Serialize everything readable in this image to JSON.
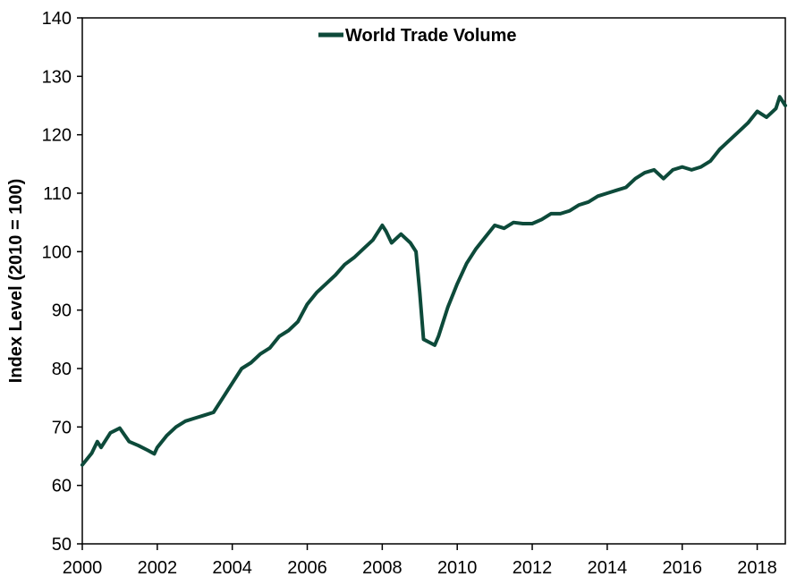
{
  "chart_data": {
    "type": "line",
    "ylabel": "Index Level (2010 = 100)",
    "ylim": [
      50,
      140
    ],
    "xlim": [
      2000,
      2018.75
    ],
    "y_ticks": [
      "50",
      "60",
      "70",
      "80",
      "90",
      "100",
      "110",
      "120",
      "130",
      "140"
    ],
    "x_ticks": [
      "2000",
      "2002",
      "2004",
      "2006",
      "2008",
      "2010",
      "2012",
      "2014",
      "2016",
      "2018"
    ],
    "grid": false,
    "legend_position": "top-center",
    "series": [
      {
        "name": "World Trade Volume",
        "color": "#0d4a3a",
        "x": [
          2000.0,
          2000.25,
          2000.4,
          2000.5,
          2000.75,
          2001.0,
          2001.25,
          2001.5,
          2001.75,
          2001.92,
          2002.0,
          2002.25,
          2002.5,
          2002.75,
          2003.0,
          2003.25,
          2003.5,
          2003.75,
          2004.0,
          2004.25,
          2004.5,
          2004.75,
          2005.0,
          2005.25,
          2005.5,
          2005.75,
          2006.0,
          2006.25,
          2006.5,
          2006.75,
          2007.0,
          2007.25,
          2007.5,
          2007.75,
          2008.0,
          2008.1,
          2008.25,
          2008.5,
          2008.75,
          2008.9,
          2009.0,
          2009.1,
          2009.25,
          2009.4,
          2009.5,
          2009.75,
          2010.0,
          2010.25,
          2010.5,
          2010.75,
          2011.0,
          2011.25,
          2011.5,
          2011.75,
          2012.0,
          2012.25,
          2012.5,
          2012.75,
          2013.0,
          2013.25,
          2013.5,
          2013.75,
          2014.0,
          2014.25,
          2014.5,
          2014.75,
          2015.0,
          2015.25,
          2015.5,
          2015.75,
          2016.0,
          2016.25,
          2016.5,
          2016.75,
          2017.0,
          2017.25,
          2017.5,
          2017.75,
          2018.0,
          2018.25,
          2018.5,
          2018.6,
          2018.75
        ],
        "values": [
          63.5,
          65.5,
          67.5,
          66.5,
          69.0,
          69.8,
          67.5,
          66.8,
          66.0,
          65.4,
          66.5,
          68.5,
          70.0,
          71.0,
          71.5,
          72.0,
          72.5,
          75.0,
          77.5,
          80.0,
          81.0,
          82.5,
          83.5,
          85.5,
          86.5,
          88.0,
          91.0,
          93.0,
          94.5,
          96.0,
          97.8,
          99.0,
          100.5,
          102.0,
          104.5,
          103.5,
          101.5,
          103.0,
          101.5,
          100.0,
          93.0,
          85.0,
          84.5,
          84.0,
          85.5,
          90.5,
          94.5,
          98.0,
          100.5,
          102.5,
          104.5,
          104.0,
          105.0,
          104.8,
          104.8,
          105.5,
          106.5,
          106.5,
          107.0,
          108.0,
          108.5,
          109.5,
          110.0,
          110.5,
          111.0,
          112.5,
          113.5,
          114.0,
          112.5,
          114.0,
          114.5,
          114.0,
          114.5,
          115.5,
          117.5,
          119.0,
          120.5,
          122.0,
          124.0,
          123.0,
          124.5,
          126.5,
          125.0
        ]
      }
    ]
  }
}
